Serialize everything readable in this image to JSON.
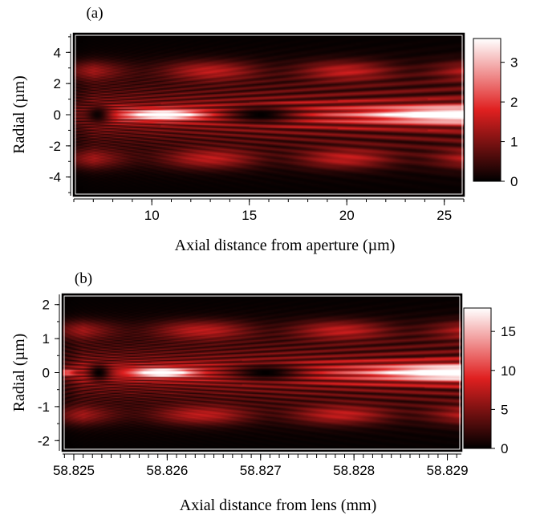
{
  "chart_data": [
    {
      "type": "heatmap",
      "panel_label": "(a)",
      "xlabel": "Axial distance from aperture  (µm)",
      "ylabel": "Radial (µm)",
      "xlim": [
        6,
        26
      ],
      "ylim": [
        -5.2,
        5.2
      ],
      "xticks": [
        10,
        15,
        20,
        25
      ],
      "xtick_labels": [
        "10",
        "15",
        "20",
        "25"
      ],
      "yticks": [
        4,
        2,
        0,
        -2,
        -4
      ],
      "ytick_labels": [
        "4",
        "2",
        "0",
        "-2",
        "-4"
      ],
      "colorbar": {
        "range": [
          0,
          3.6
        ],
        "ticks": [
          3,
          2,
          1,
          0
        ],
        "tick_labels": [
          "3",
          "2",
          "1",
          "0"
        ]
      },
      "bright_spots": [
        {
          "x": 10.5,
          "y": 0,
          "value": 3.3
        },
        {
          "x": 25.5,
          "y": 0,
          "value": 3.6
        }
      ],
      "dark_spots": [
        {
          "x": 7.3,
          "y": 0,
          "value": 0
        },
        {
          "x": 15.5,
          "y": 0,
          "value": 0
        }
      ],
      "colormap": [
        "#000000",
        "#e02020",
        "#ffffff"
      ]
    },
    {
      "type": "heatmap",
      "panel_label": "(b)",
      "xlabel": "Axial distance from lens (mm)",
      "ylabel": "Radial (µm)",
      "xlim": [
        58.82488,
        58.82915
      ],
      "ylim": [
        -2.3,
        2.3
      ],
      "xticks": [
        58.825,
        58.826,
        58.827,
        58.828,
        58.829
      ],
      "xtick_labels": [
        "58.825",
        "58.826",
        "58.827",
        "58.828",
        "58.829"
      ],
      "yticks": [
        2,
        1,
        0,
        -1,
        -2
      ],
      "ytick_labels": [
        "2",
        "1",
        "0",
        "-1",
        "-2"
      ],
      "colorbar": {
        "range": [
          0,
          18
        ],
        "ticks": [
          15,
          10,
          5,
          0
        ],
        "tick_labels": [
          "15",
          "10",
          "5",
          "0"
        ]
      },
      "bright_spots": [
        {
          "x": 58.8249,
          "y": 0,
          "value": 14
        },
        {
          "x": 58.82595,
          "y": 0,
          "value": 16
        },
        {
          "x": 58.8291,
          "y": 0,
          "value": 17
        }
      ],
      "dark_spots": [
        {
          "x": 58.82525,
          "y": 0,
          "value": 0
        },
        {
          "x": 58.82705,
          "y": 0,
          "value": 0
        }
      ],
      "colormap": [
        "#000000",
        "#e02020",
        "#ffffff"
      ]
    }
  ]
}
